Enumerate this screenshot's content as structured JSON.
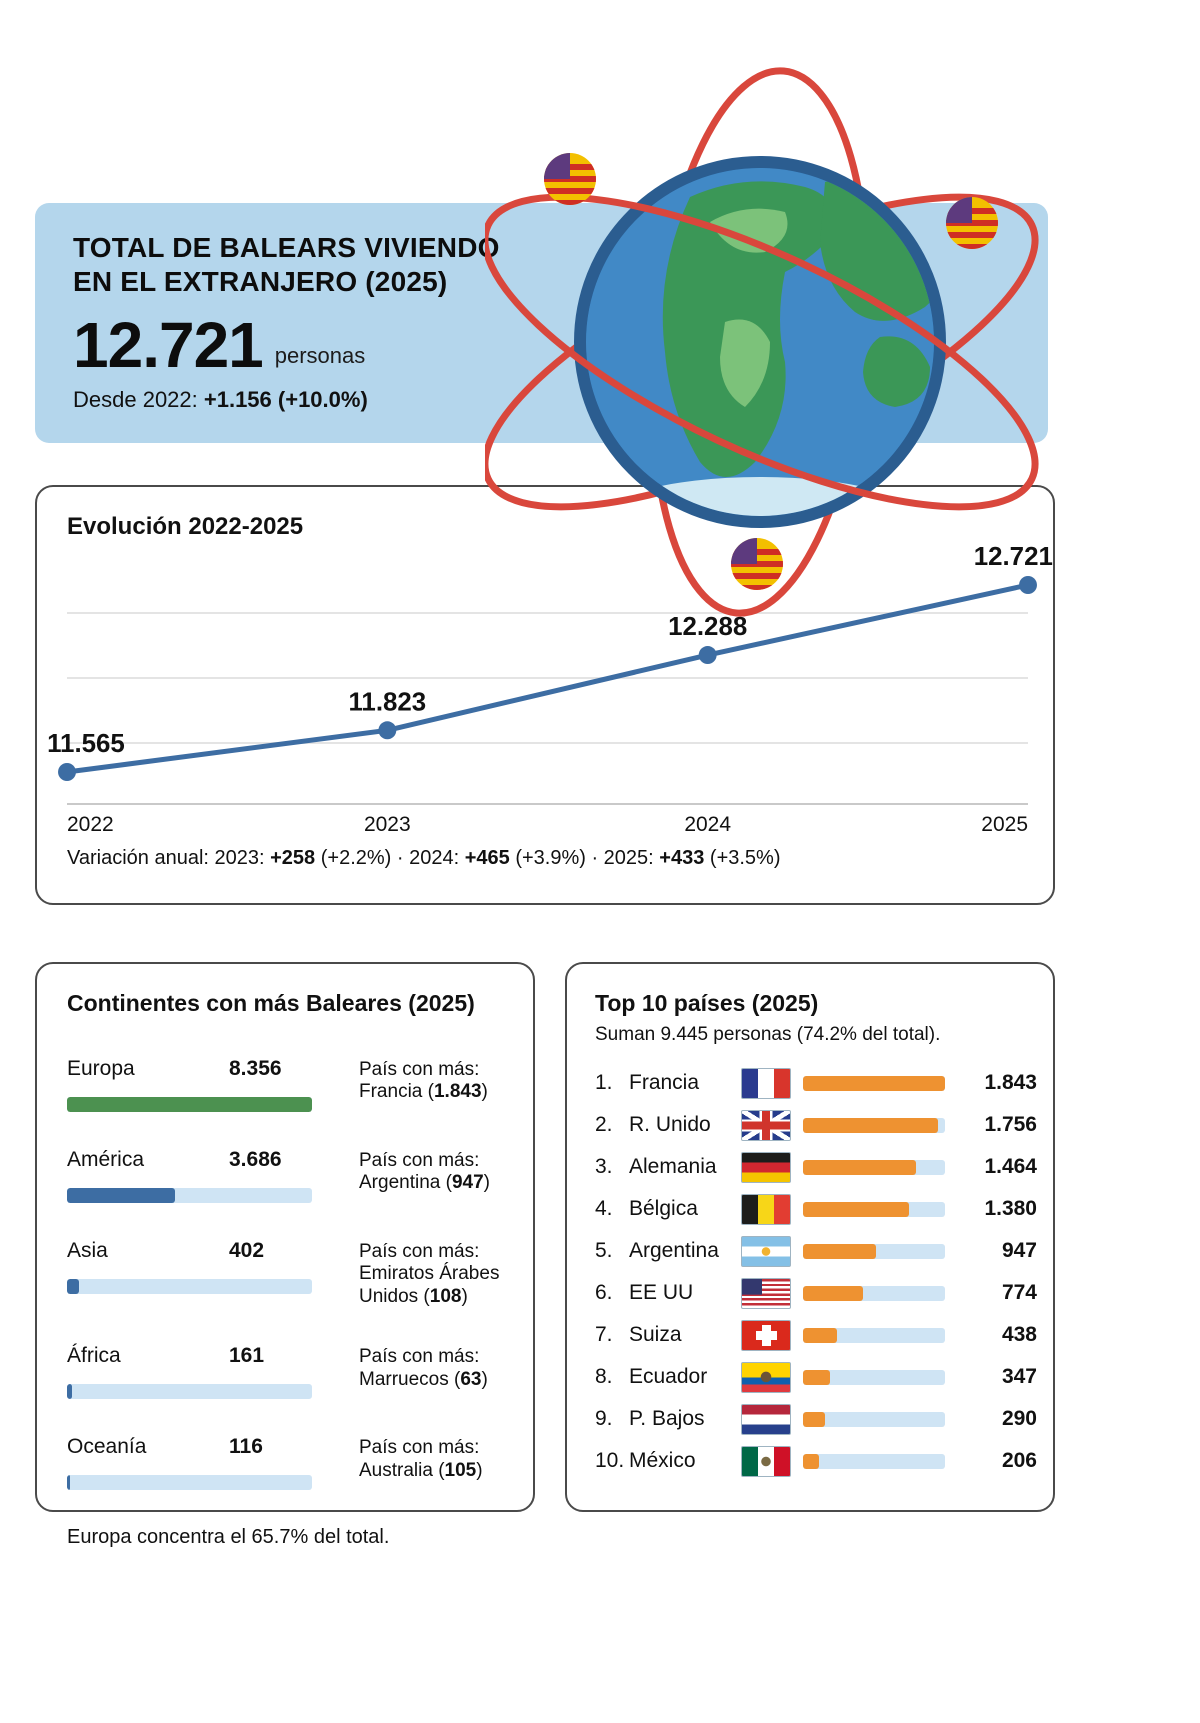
{
  "summary": {
    "title_line1": "TOTAL DE BALEARS VIVIENDO",
    "title_line2": "EN EL EXTRANJERO (2025)",
    "total": "12.721",
    "unit": "personas",
    "since_prefix": "Desde 2022: ",
    "since_bold": "+1.156 (+10.0%)"
  },
  "evolution": {
    "title": "Evolución 2022-2025",
    "years": [
      "2022",
      "2023",
      "2024",
      "2025"
    ],
    "values": [
      11565,
      11823,
      12288,
      12721
    ],
    "point_labels": [
      "11.565",
      "11.823",
      "12.288",
      "12.721"
    ],
    "line_color": "#3d6da3",
    "variation": {
      "p1": "Variación anual: 2023: ",
      "b1": "+258",
      "p2": " (+2.2%) · 2024: ",
      "b2": "+465",
      "p3": " (+3.9%) · 2025: ",
      "b3": "+433",
      "p4": " (+3.5%)"
    }
  },
  "continents": {
    "title": "Continentes con más Baleares (2025)",
    "max": 8356,
    "note": "Europa concentra el 65.7% del total.",
    "rows": [
      {
        "name": "Europa",
        "value": 8356,
        "value_label": "8.356",
        "bar_color": "#4c9150",
        "pais_label": "País con más:",
        "pais_prefix": "Francia (",
        "pais_bold": "1.843",
        "pais_suffix": ")"
      },
      {
        "name": "América",
        "value": 3686,
        "value_label": "3.686",
        "bar_color": "#3d6da3",
        "pais_label": "País con más:",
        "pais_prefix": "Argentina (",
        "pais_bold": "947",
        "pais_suffix": ")"
      },
      {
        "name": "Asia",
        "value": 402,
        "value_label": "402",
        "bar_color": "#3d6da3",
        "pais_label": "País con más:",
        "pais_prefix": "Emiratos Árabes Unidos (",
        "pais_bold": "108",
        "pais_suffix": ")"
      },
      {
        "name": "África",
        "value": 161,
        "value_label": "161",
        "bar_color": "#3d6da3",
        "pais_label": "País con más:",
        "pais_prefix": "Marruecos (",
        "pais_bold": "63",
        "pais_suffix": ")"
      },
      {
        "name": "Oceanía",
        "value": 116,
        "value_label": "116",
        "bar_color": "#3d6da3",
        "pais_label": "País con más:",
        "pais_prefix": "Australia (",
        "pais_bold": "105",
        "pais_suffix": ")"
      }
    ]
  },
  "top10": {
    "title": "Top 10 países (2025)",
    "subtitle": "Suman 9.445 personas (74.2% del total).",
    "max": 1843,
    "bar_color": "#ee9231",
    "rows": [
      {
        "rank": "1.",
        "name": "Francia",
        "flag_icon": "flag-france-icon",
        "value": 1843,
        "value_label": "1.843"
      },
      {
        "rank": "2.",
        "name": "R. Unido",
        "flag_icon": "flag-uk-icon",
        "value": 1756,
        "value_label": "1.756"
      },
      {
        "rank": "3.",
        "name": "Alemania",
        "flag_icon": "flag-germany-icon",
        "value": 1464,
        "value_label": "1.464"
      },
      {
        "rank": "4.",
        "name": "Bélgica",
        "flag_icon": "flag-belgium-icon",
        "value": 1380,
        "value_label": "1.380"
      },
      {
        "rank": "5.",
        "name": "Argentina",
        "flag_icon": "flag-argentina-icon",
        "value": 947,
        "value_label": "947"
      },
      {
        "rank": "6.",
        "name": "EE UU",
        "flag_icon": "flag-usa-icon",
        "value": 774,
        "value_label": "774"
      },
      {
        "rank": "7.",
        "name": "Suiza",
        "flag_icon": "flag-switzerland-icon",
        "value": 438,
        "value_label": "438"
      },
      {
        "rank": "8.",
        "name": "Ecuador",
        "flag_icon": "flag-ecuador-icon",
        "value": 347,
        "value_label": "347"
      },
      {
        "rank": "9.",
        "name": "P. Bajos",
        "flag_icon": "flag-netherlands-icon",
        "value": 290,
        "value_label": "290"
      },
      {
        "rank": "10.",
        "name": "México",
        "flag_icon": "flag-mexico-icon",
        "value": 206,
        "value_label": "206"
      }
    ]
  },
  "colors": {
    "panel_blue": "#b4d6ec",
    "line_blue": "#3d6da3",
    "bar_orange": "#ee9231",
    "bar_green": "#4c9150",
    "bar_track": "#cfe4f4",
    "orbit_red": "#d9473c"
  },
  "chart_data": [
    {
      "type": "line",
      "title": "Evolución 2022-2025",
      "x": [
        "2022",
        "2023",
        "2024",
        "2025"
      ],
      "series": [
        {
          "name": "Balears viviendo en el extranjero",
          "values": [
            11565,
            11823,
            12288,
            12721
          ]
        }
      ],
      "point_labels": [
        "11.565",
        "11.823",
        "12.288",
        "12.721"
      ],
      "ylim": [
        11400,
        12850
      ],
      "grid": true,
      "legend_position": "none",
      "annotation": "Variación anual: 2023: +258 (+2.2%) · 2024: +465 (+3.9%) · 2025: +433 (+3.5%)",
      "line_color": "#3d6da3"
    },
    {
      "type": "bar",
      "title": "Continentes con más Baleares (2025)",
      "orientation": "horizontal",
      "categories": [
        "Europa",
        "América",
        "Asia",
        "África",
        "Oceanía"
      ],
      "values": [
        8356,
        3686,
        402,
        161,
        116
      ],
      "bar_colors": [
        "#4c9150",
        "#3d6da3",
        "#3d6da3",
        "#3d6da3",
        "#3d6da3"
      ],
      "annotations": [
        "País con más: Francia (1.843)",
        "País con más: Argentina (947)",
        "País con más: Emiratos Árabes Unidos (108)",
        "País con más: Marruecos (63)",
        "País con más: Australia (105)"
      ],
      "note": "Europa concentra el 65.7% del total.",
      "xlim": [
        0,
        8356
      ]
    },
    {
      "type": "bar",
      "title": "Top 10 países (2025)",
      "subtitle": "Suman 9.445 personas (74.2% del total).",
      "orientation": "horizontal",
      "categories": [
        "Francia",
        "R. Unido",
        "Alemania",
        "Bélgica",
        "Argentina",
        "EE UU",
        "Suiza",
        "Ecuador",
        "P. Bajos",
        "México"
      ],
      "values": [
        1843,
        1756,
        1464,
        1380,
        947,
        774,
        438,
        347,
        290,
        206
      ],
      "bar_color": "#ee9231",
      "xlim": [
        0,
        1843
      ]
    }
  ]
}
